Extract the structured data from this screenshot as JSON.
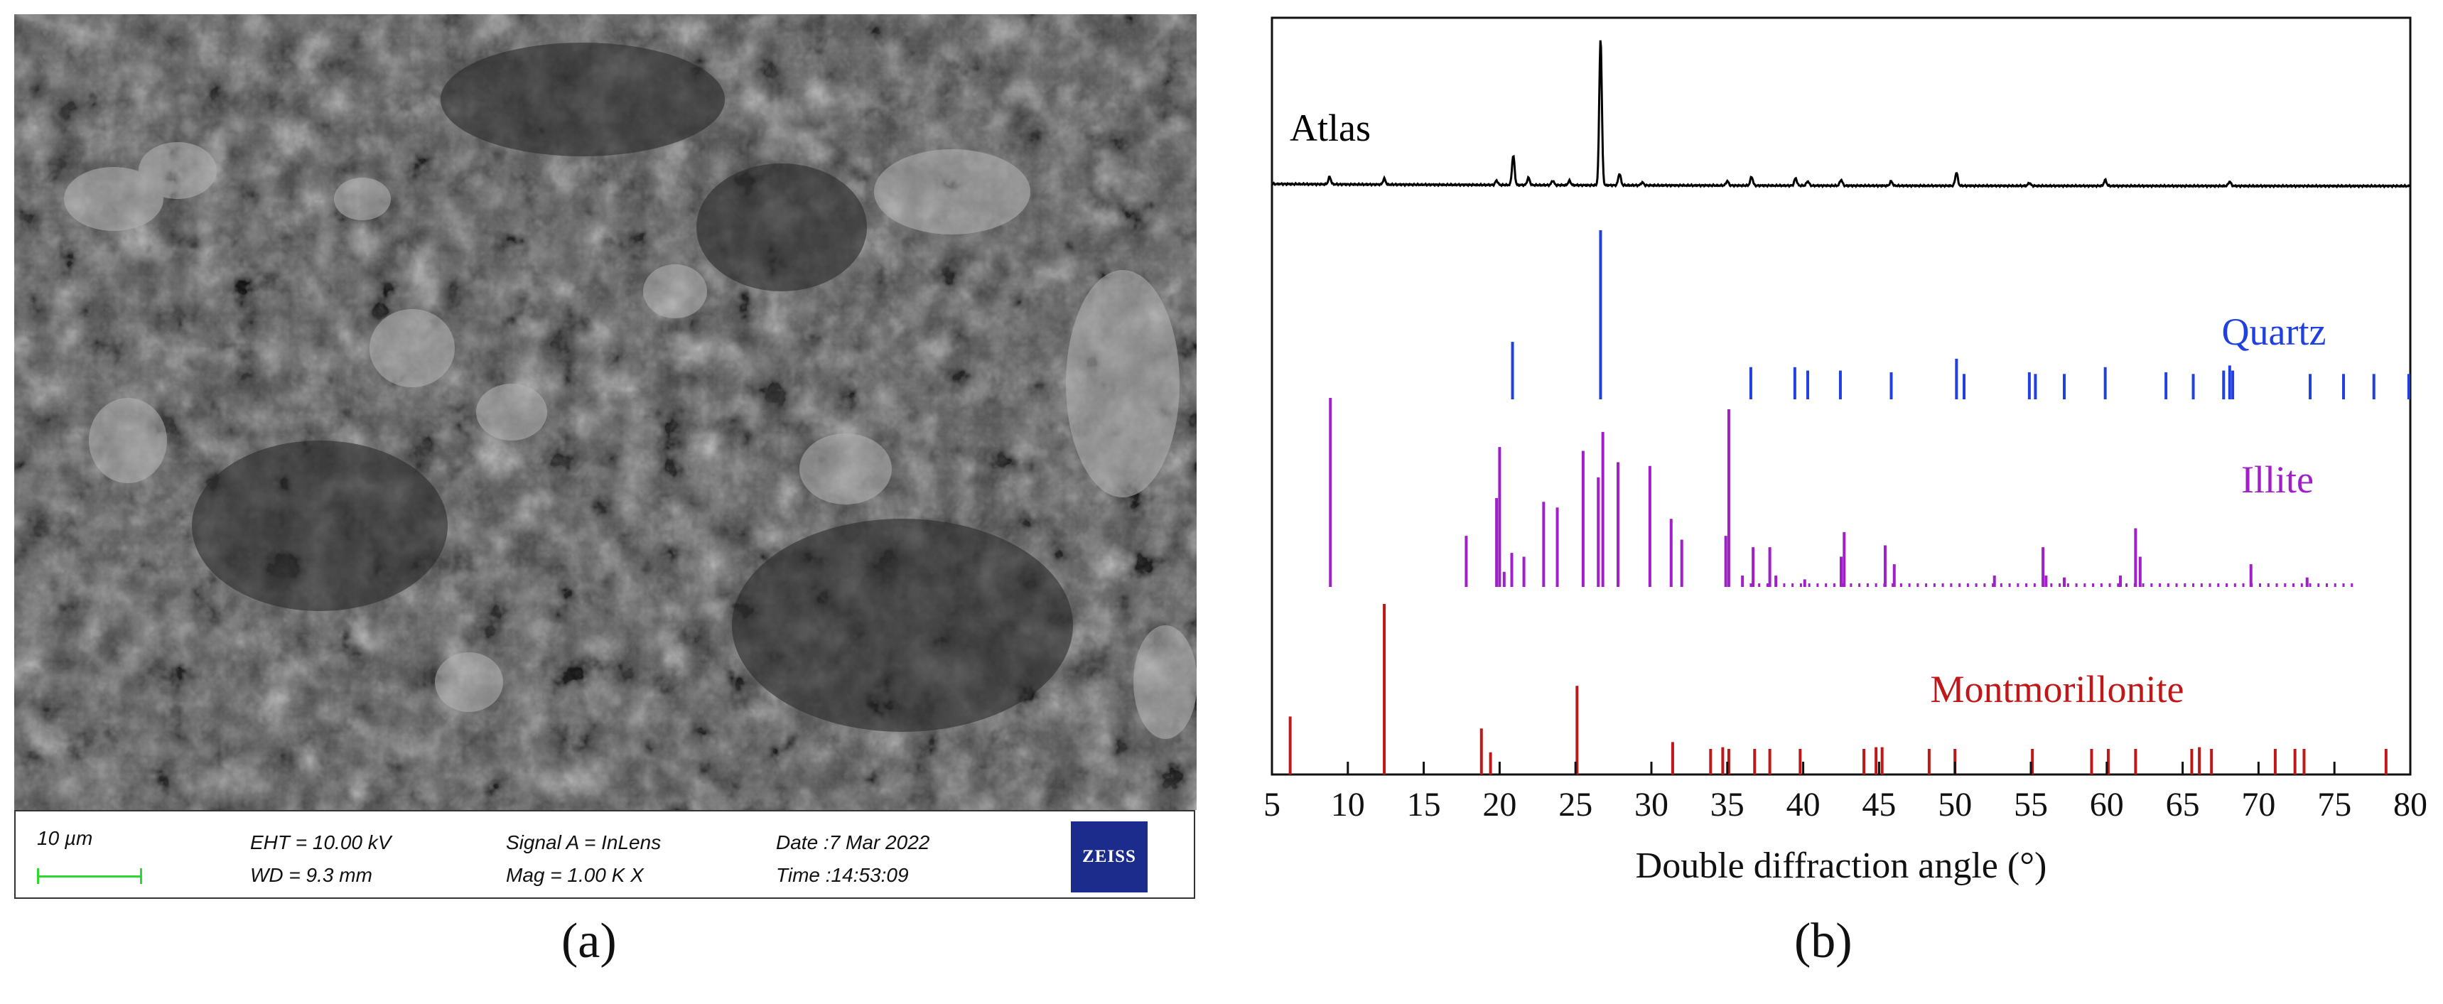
{
  "panels": {
    "a_label": "(a)",
    "b_label": "(b)"
  },
  "sem": {
    "scale_label": "10 µm",
    "eht": "EHT = 10.00 kV",
    "wd": "WD =  9.3 mm",
    "signal": "Signal A = InLens",
    "mag": "Mag =     1.00 K X",
    "date": "Date :7 Mar 2022",
    "time": "Time :14:53:09",
    "logo_text": "ZEISS",
    "colors": {
      "scale_bar": "#2fd82f",
      "logo_bg": "#1b2c8c"
    }
  },
  "chart_data": {
    "type": "line",
    "xlabel": "Double diffraction angle (°)",
    "ylabel": "",
    "xlim": [
      5,
      80
    ],
    "xticks": [
      5,
      10,
      15,
      20,
      25,
      30,
      35,
      40,
      45,
      50,
      55,
      60,
      65,
      70,
      75,
      80
    ],
    "grid": false,
    "series": [
      {
        "name": "Atlas",
        "color": "#000000",
        "kind": "pattern",
        "peaks": [
          {
            "x": 8.8,
            "h": 0.05
          },
          {
            "x": 12.4,
            "h": 0.04
          },
          {
            "x": 19.8,
            "h": 0.03
          },
          {
            "x": 20.9,
            "h": 0.2
          },
          {
            "x": 21.9,
            "h": 0.05
          },
          {
            "x": 23.5,
            "h": 0.03
          },
          {
            "x": 24.6,
            "h": 0.03
          },
          {
            "x": 26.65,
            "h": 1.0
          },
          {
            "x": 27.9,
            "h": 0.08
          },
          {
            "x": 29.4,
            "h": 0.02
          },
          {
            "x": 35.0,
            "h": 0.03
          },
          {
            "x": 36.6,
            "h": 0.06
          },
          {
            "x": 39.5,
            "h": 0.05
          },
          {
            "x": 40.3,
            "h": 0.03
          },
          {
            "x": 42.5,
            "h": 0.04
          },
          {
            "x": 45.8,
            "h": 0.03
          },
          {
            "x": 50.1,
            "h": 0.09
          },
          {
            "x": 54.9,
            "h": 0.02
          },
          {
            "x": 59.9,
            "h": 0.04
          },
          {
            "x": 68.1,
            "h": 0.03
          }
        ]
      },
      {
        "name": "Quartz",
        "color": "#2040e0",
        "kind": "sticks",
        "peaks": [
          {
            "x": 20.85,
            "h": 0.34
          },
          {
            "x": 26.65,
            "h": 1.0
          },
          {
            "x": 36.55,
            "h": 0.19
          },
          {
            "x": 39.45,
            "h": 0.19
          },
          {
            "x": 40.3,
            "h": 0.17
          },
          {
            "x": 42.45,
            "h": 0.17
          },
          {
            "x": 45.8,
            "h": 0.16
          },
          {
            "x": 50.1,
            "h": 0.24
          },
          {
            "x": 50.6,
            "h": 0.15
          },
          {
            "x": 54.9,
            "h": 0.16
          },
          {
            "x": 55.3,
            "h": 0.15
          },
          {
            "x": 57.2,
            "h": 0.15
          },
          {
            "x": 59.9,
            "h": 0.19
          },
          {
            "x": 63.9,
            "h": 0.16
          },
          {
            "x": 65.7,
            "h": 0.15
          },
          {
            "x": 67.7,
            "h": 0.17
          },
          {
            "x": 68.1,
            "h": 0.2
          },
          {
            "x": 68.3,
            "h": 0.17
          },
          {
            "x": 73.4,
            "h": 0.15
          },
          {
            "x": 75.6,
            "h": 0.15
          },
          {
            "x": 77.6,
            "h": 0.15
          },
          {
            "x": 79.9,
            "h": 0.15
          }
        ]
      },
      {
        "name": "Illite",
        "color": "#a020c8",
        "kind": "sticks",
        "peaks": [
          {
            "x": 8.85,
            "h": 1.0
          },
          {
            "x": 17.8,
            "h": 0.27
          },
          {
            "x": 19.8,
            "h": 0.47
          },
          {
            "x": 20.0,
            "h": 0.74
          },
          {
            "x": 20.3,
            "h": 0.08
          },
          {
            "x": 20.8,
            "h": 0.18
          },
          {
            "x": 21.6,
            "h": 0.16
          },
          {
            "x": 22.9,
            "h": 0.45
          },
          {
            "x": 23.8,
            "h": 0.42
          },
          {
            "x": 25.5,
            "h": 0.72
          },
          {
            "x": 26.5,
            "h": 0.58
          },
          {
            "x": 26.8,
            "h": 0.82
          },
          {
            "x": 27.8,
            "h": 0.66
          },
          {
            "x": 29.9,
            "h": 0.64
          },
          {
            "x": 31.3,
            "h": 0.36
          },
          {
            "x": 32.0,
            "h": 0.25
          },
          {
            "x": 34.9,
            "h": 0.27
          },
          {
            "x": 35.1,
            "h": 0.94
          },
          {
            "x": 36.0,
            "h": 0.06
          },
          {
            "x": 36.7,
            "h": 0.21
          },
          {
            "x": 37.8,
            "h": 0.21
          },
          {
            "x": 38.2,
            "h": 0.06
          },
          {
            "x": 40.1,
            "h": 0.04
          },
          {
            "x": 42.5,
            "h": 0.16
          },
          {
            "x": 42.7,
            "h": 0.29
          },
          {
            "x": 45.4,
            "h": 0.22
          },
          {
            "x": 46.0,
            "h": 0.12
          },
          {
            "x": 52.6,
            "h": 0.06
          },
          {
            "x": 55.8,
            "h": 0.21
          },
          {
            "x": 56.0,
            "h": 0.06
          },
          {
            "x": 57.2,
            "h": 0.05
          },
          {
            "x": 60.9,
            "h": 0.06
          },
          {
            "x": 61.9,
            "h": 0.31
          },
          {
            "x": 62.2,
            "h": 0.16
          },
          {
            "x": 69.5,
            "h": 0.12
          },
          {
            "x": 73.2,
            "h": 0.05
          }
        ]
      },
      {
        "name": "Montmorillonite",
        "color": "#c01818",
        "kind": "sticks",
        "peaks": [
          {
            "x": 6.2,
            "h": 0.34
          },
          {
            "x": 12.4,
            "h": 1.0
          },
          {
            "x": 18.8,
            "h": 0.27
          },
          {
            "x": 19.4,
            "h": 0.13
          },
          {
            "x": 25.1,
            "h": 0.52
          },
          {
            "x": 31.4,
            "h": 0.19
          },
          {
            "x": 33.9,
            "h": 0.15
          },
          {
            "x": 34.7,
            "h": 0.16
          },
          {
            "x": 35.1,
            "h": 0.15
          },
          {
            "x": 36.8,
            "h": 0.15
          },
          {
            "x": 37.8,
            "h": 0.15
          },
          {
            "x": 39.8,
            "h": 0.15
          },
          {
            "x": 44.0,
            "h": 0.15
          },
          {
            "x": 44.8,
            "h": 0.16
          },
          {
            "x": 45.2,
            "h": 0.16
          },
          {
            "x": 48.3,
            "h": 0.15
          },
          {
            "x": 50.0,
            "h": 0.15
          },
          {
            "x": 55.1,
            "h": 0.15
          },
          {
            "x": 59.0,
            "h": 0.15
          },
          {
            "x": 60.1,
            "h": 0.15
          },
          {
            "x": 61.9,
            "h": 0.15
          },
          {
            "x": 65.6,
            "h": 0.15
          },
          {
            "x": 66.1,
            "h": 0.16
          },
          {
            "x": 66.9,
            "h": 0.15
          },
          {
            "x": 71.1,
            "h": 0.15
          },
          {
            "x": 72.4,
            "h": 0.15
          },
          {
            "x": 73.0,
            "h": 0.15
          },
          {
            "x": 78.4,
            "h": 0.15
          }
        ]
      }
    ]
  }
}
